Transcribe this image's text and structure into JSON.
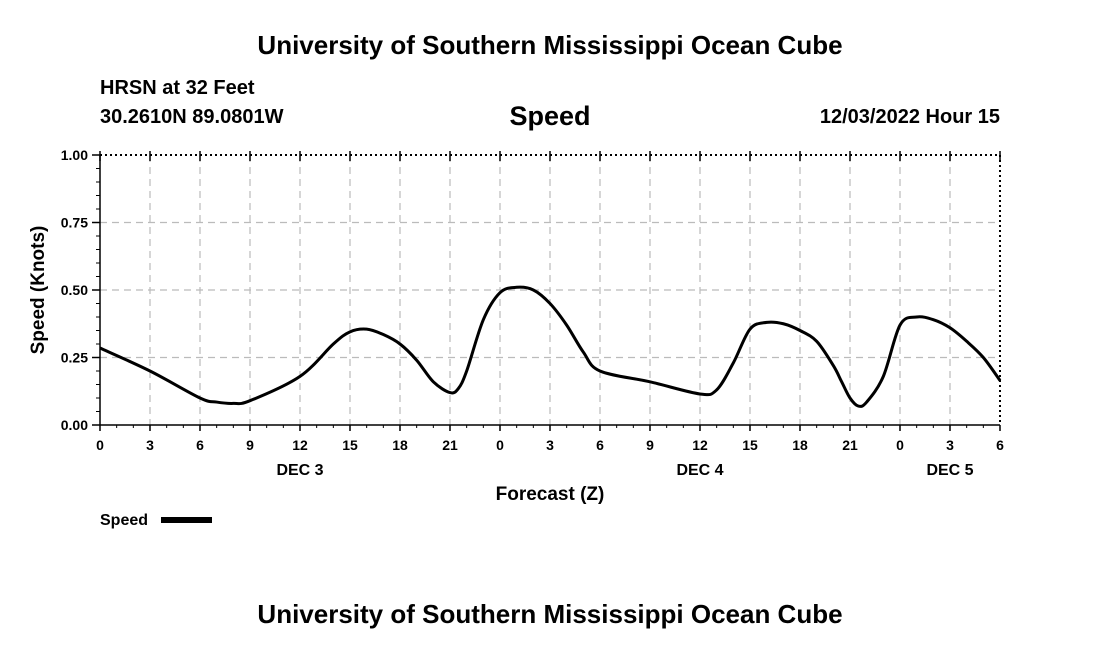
{
  "header": {
    "title": "University of Southern Mississippi Ocean Cube",
    "station": "HRSN at 32 Feet",
    "coordinates": "30.2610N  89.0801W",
    "chart_title": "Speed",
    "timestamp": "12/03/2022 Hour 15"
  },
  "footer": {
    "title": "University of Southern Mississippi Ocean Cube"
  },
  "chart_data": {
    "type": "line",
    "title": "Speed",
    "xlabel": "Forecast (Z)",
    "ylabel": "Speed (Knots)",
    "xlim": [
      0,
      54
    ],
    "ylim": [
      0,
      1
    ],
    "grid": true,
    "x_tick_positions": [
      0,
      3,
      6,
      9,
      12,
      15,
      18,
      21,
      24,
      27,
      30,
      33,
      36,
      39,
      42,
      45,
      48,
      51,
      54
    ],
    "x_tick_labels": [
      "0",
      "3",
      "6",
      "9",
      "12",
      "15",
      "18",
      "21",
      "0",
      "3",
      "6",
      "9",
      "12",
      "15",
      "18",
      "21",
      "0",
      "3",
      "6"
    ],
    "y_ticks": [
      0,
      0.25,
      0.5,
      0.75,
      1
    ],
    "y_tick_labels": [
      "0.00",
      "0.25",
      "0.50",
      "0.75",
      "1.00"
    ],
    "day_labels": [
      {
        "x": 12,
        "label": "DEC 3"
      },
      {
        "x": 36,
        "label": "DEC 4"
      },
      {
        "x": 51,
        "label": "DEC 5"
      }
    ],
    "legend": {
      "label": "Speed",
      "position": "bottom-left"
    },
    "series": [
      {
        "name": "Speed",
        "x": [
          0,
          3,
          6,
          7,
          8,
          9,
          12,
          14,
          15,
          16,
          17,
          18,
          19,
          20,
          21,
          21.5,
          22,
          23,
          24,
          25,
          26,
          27,
          28,
          29,
          30,
          33,
          36,
          37,
          38,
          39,
          40,
          41,
          42,
          43,
          44,
          44.5,
          45,
          45.5,
          46,
          47,
          48,
          49,
          50,
          51,
          52,
          53,
          54
        ],
        "y": [
          0.285,
          0.2,
          0.1,
          0.085,
          0.08,
          0.09,
          0.18,
          0.3,
          0.345,
          0.355,
          0.335,
          0.3,
          0.24,
          0.16,
          0.12,
          0.135,
          0.2,
          0.39,
          0.49,
          0.51,
          0.5,
          0.45,
          0.37,
          0.27,
          0.2,
          0.16,
          0.115,
          0.13,
          0.23,
          0.355,
          0.38,
          0.375,
          0.35,
          0.31,
          0.22,
          0.16,
          0.1,
          0.07,
          0.085,
          0.18,
          0.37,
          0.4,
          0.39,
          0.36,
          0.31,
          0.25,
          0.165
        ]
      }
    ]
  }
}
